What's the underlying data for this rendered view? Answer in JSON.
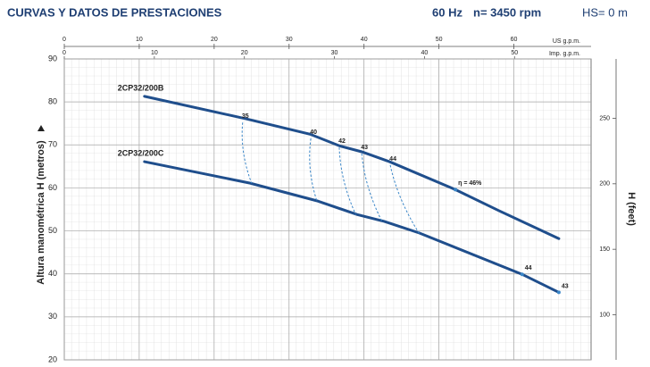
{
  "header": {
    "title": "CURVAS Y DATOS DE PRESTACIONES",
    "frequency": "60 Hz",
    "speed": "n= 3450 rpm",
    "hs": "HS= 0 m"
  },
  "chart_data": {
    "type": "line",
    "ylabel": "Altura manométrica H (metros)",
    "y2label": "H (feet)",
    "xlabel": "US g.p.m.",
    "x2label": "Imp. g.p.m.",
    "xlim": [
      0,
      70.3
    ],
    "xticks": [
      0,
      10,
      20,
      30,
      40,
      50,
      60
    ],
    "x2lim": [
      0,
      58.5
    ],
    "x2ticks": [
      0,
      10,
      20,
      30,
      40,
      50
    ],
    "ylim": [
      20,
      90
    ],
    "yticks": [
      20,
      30,
      40,
      50,
      60,
      70,
      80,
      90
    ],
    "y2lim": [
      65.6,
      295.3
    ],
    "y2ticks": [
      100,
      150,
      200,
      250
    ],
    "grid": true,
    "series": [
      {
        "name": "2CP32/200B",
        "color": "#1f4e8c",
        "x": [
          10.7,
          24.2,
          32.8,
          36.7,
          39.7,
          43.4,
          52.2,
          58,
          66
        ],
        "values": [
          81.3,
          76.1,
          72.5,
          69.8,
          68.4,
          66.1,
          59.6,
          54.7,
          48.2
        ]
      },
      {
        "name": "2CP32/200C",
        "color": "#1f4e8c",
        "x": [
          10.7,
          24.8,
          33.7,
          39.1,
          42.7,
          47.4,
          61.1,
          66
        ],
        "values": [
          66.1,
          61.1,
          57.0,
          53.8,
          52.2,
          49.5,
          39.9,
          35.7
        ]
      }
    ],
    "efficiency_color": "#3a86c8",
    "efficiency_lines": [
      {
        "label": "35",
        "x": [
          23.8,
          25.0
        ],
        "y": [
          75.2,
          61.1
        ]
      },
      {
        "label": "40",
        "x": [
          32.9,
          33.7
        ],
        "y": [
          71.5,
          57.0
        ]
      },
      {
        "label": "42",
        "x": [
          36.7,
          38.9
        ],
        "y": [
          69.4,
          53.8
        ]
      },
      {
        "label": "43",
        "x": [
          39.7,
          42.4
        ],
        "y": [
          68.0,
          52.2
        ]
      },
      {
        "label": "44",
        "x": [
          43.5,
          47.4
        ],
        "y": [
          65.3,
          49.3
        ]
      }
    ],
    "efficiency_points": [
      {
        "label": "η = 46%",
        "x": 52.2,
        "y": 59.6
      },
      {
        "label": "44",
        "x": 61.1,
        "y": 39.9
      },
      {
        "label": "43",
        "x": 66,
        "y": 35.7
      }
    ]
  }
}
